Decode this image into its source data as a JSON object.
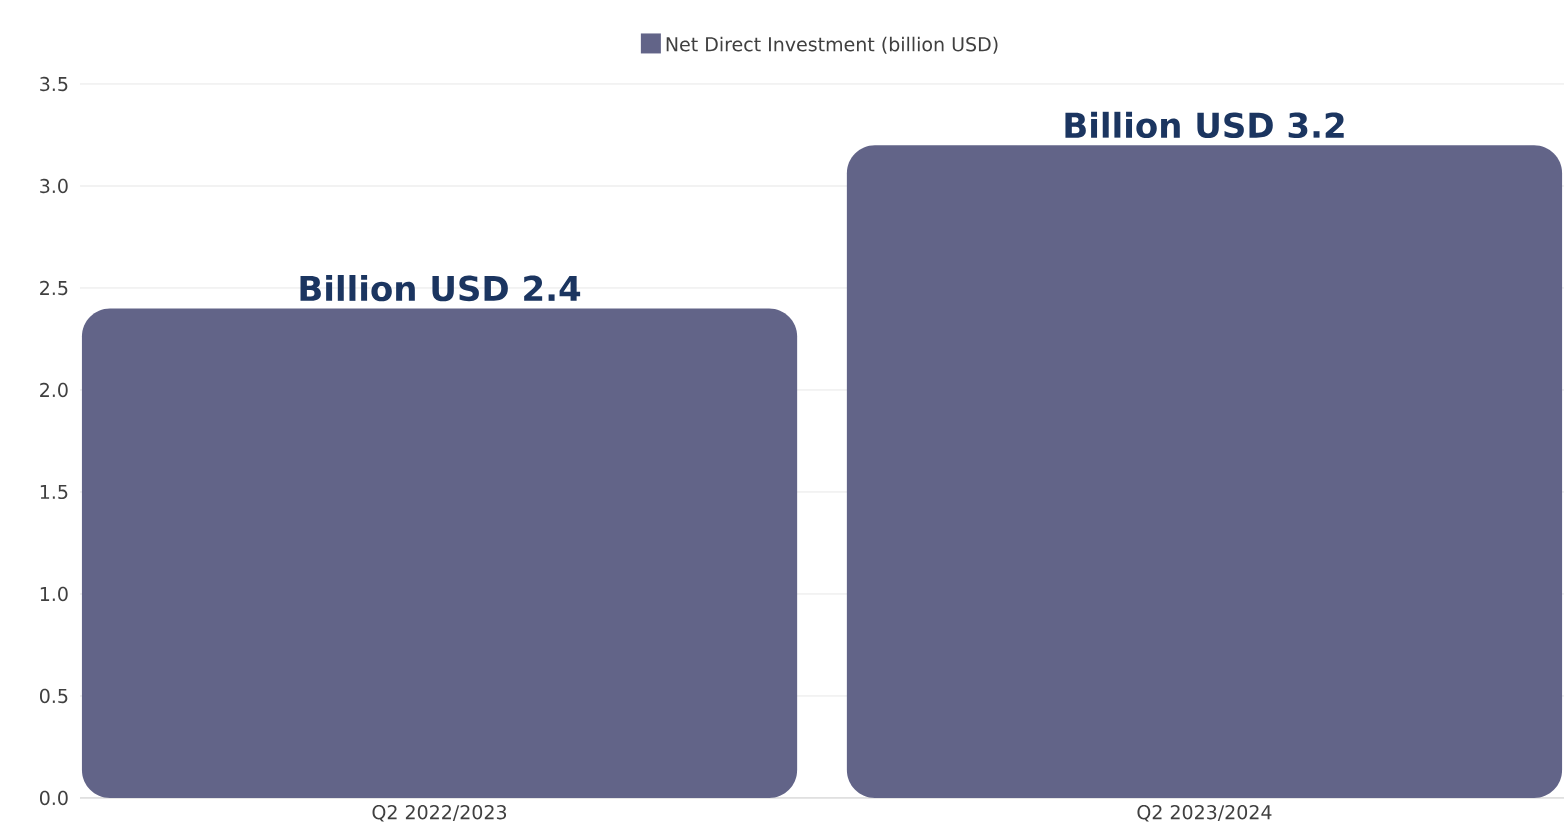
{
  "chart_data": {
    "type": "bar",
    "categories": [
      "Q2 2022/2023",
      "Q2 2023/2024"
    ],
    "series": [
      {
        "name": "Net Direct Investment (billion USD)",
        "color": "#626488",
        "values": [
          2.4,
          3.2
        ],
        "value_labels": [
          "Billion USD 2.4",
          "Billion USD 3.2"
        ]
      }
    ],
    "ylim": [
      0,
      3.5
    ],
    "yticks": [
      {
        "value": 0,
        "label": "0.0"
      },
      0.5,
      {
        "value": 1,
        "label": "1.0"
      },
      1.5,
      {
        "value": 2,
        "label": "2.0"
      },
      2.5,
      {
        "value": 3,
        "label": "3.0"
      },
      3.5
    ],
    "grid": "y",
    "legend": "top"
  }
}
